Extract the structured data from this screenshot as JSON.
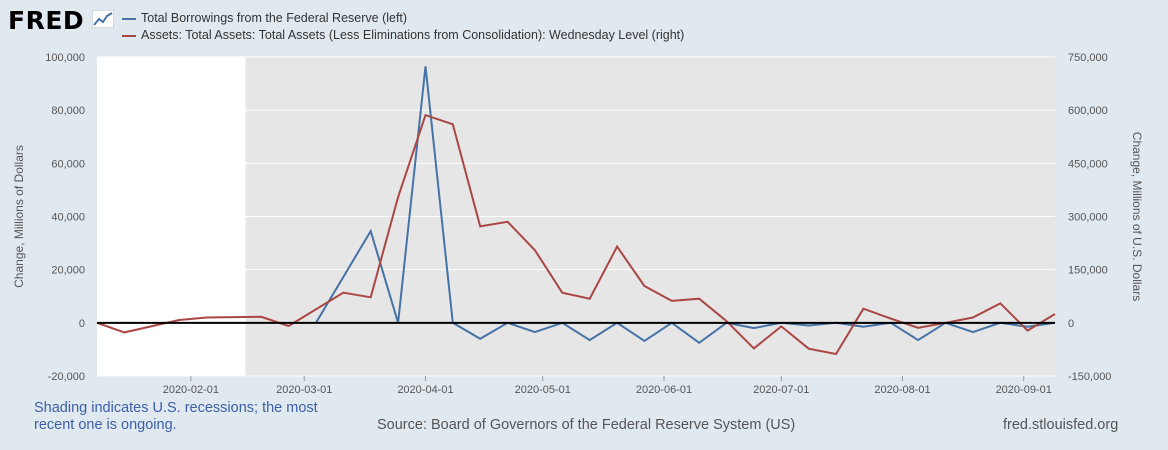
{
  "logo": {
    "text": "FRED",
    "icon": "fred-chart-icon"
  },
  "colors": {
    "background": "#e1e9f0",
    "plot_bg": "#e6e6e6",
    "unshaded": "#ffffff",
    "series_blue": "#4572a7",
    "series_red": "#aa4643",
    "zero_line": "#000000",
    "text": "#555555",
    "note": "#3b5fa6"
  },
  "legend": [
    {
      "label": "Total Borrowings from the Federal Reserve (left)",
      "color": "#4572a7"
    },
    {
      "label": "Assets: Total Assets: Total Assets (Less Eliminations from Consolidation): Wednesday Level (right)",
      "color": "#aa4643"
    }
  ],
  "footer": {
    "note": "Shading indicates U.S. recessions; the most recent one is ongoing.",
    "source": "Source: Board of Governors of the Federal Reserve System (US)",
    "url": "fred.stlouisfed.org"
  },
  "chart_data": {
    "type": "line",
    "title": "",
    "xlabel": "",
    "ylabel": "Change, Millions of Dollars",
    "ylabel_right": "Change, Millions of U.S. Dollars",
    "x": [
      "2020-01-08",
      "2020-01-15",
      "2020-01-29",
      "2020-02-12",
      "2020-02-26",
      "2020-03-11",
      "2020-03-18",
      "2020-03-25",
      "2020-04-01",
      "2020-04-08",
      "2020-04-15",
      "2020-04-22",
      "2020-04-29",
      "2020-05-06",
      "2020-05-13",
      "2020-05-20",
      "2020-05-27",
      "2020-06-03",
      "2020-06-10",
      "2020-06-17",
      "2020-06-24",
      "2020-07-01",
      "2020-07-08",
      "2020-07-15",
      "2020-07-22",
      "2020-07-29",
      "2020-08-05",
      "2020-08-12",
      "2020-08-19",
      "2020-08-26",
      "2020-09-02",
      "2020-09-09"
    ],
    "ylim_left": [
      -20000,
      100000
    ],
    "yticks_left": [
      "100,000",
      "80,000",
      "60,000",
      "40,000",
      "20,000",
      "0",
      "-20,000"
    ],
    "ylim_right": [
      -150000,
      750000
    ],
    "yticks_right": [
      "750,000",
      "600,000",
      "450,000",
      "300,000",
      "150,000",
      "0",
      "-150,000"
    ],
    "xticks": [
      "2020-02-01",
      "2020-03-01",
      "2020-04-01",
      "2020-05-01",
      "2020-06-01",
      "2020-07-01",
      "2020-08-01",
      "2020-09-01"
    ],
    "shading": {
      "start": "2020-02-15",
      "end": "2020-09-09",
      "label": "recession"
    },
    "series": [
      {
        "name": "Total Borrowings from the Federal Reserve (left)",
        "axis": "left",
        "x": [
          "2020-03-04",
          "2020-03-18",
          "2020-03-25",
          "2020-04-01",
          "2020-04-08",
          "2020-04-15",
          "2020-04-22",
          "2020-04-29",
          "2020-05-06",
          "2020-05-13",
          "2020-05-20",
          "2020-05-27",
          "2020-06-03",
          "2020-06-10",
          "2020-06-17",
          "2020-06-24",
          "2020-07-01",
          "2020-07-08",
          "2020-07-15",
          "2020-07-22",
          "2020-07-29",
          "2020-08-05",
          "2020-08-12",
          "2020-08-19",
          "2020-08-26",
          "2020-09-02",
          "2020-09-09"
        ],
        "values": [
          0,
          34500,
          0,
          96500,
          0,
          -6000,
          0,
          -3500,
          0,
          -6500,
          0,
          -6800,
          0,
          -7500,
          0,
          -2000,
          0,
          -1000,
          0,
          -1500,
          0,
          -6500,
          0,
          -3500,
          0,
          -1500,
          0
        ]
      },
      {
        "name": "Assets: Total Assets: Total Assets (Less Eliminations from Consolidation): Wednesday Level (right)",
        "axis": "right",
        "x": [
          "2020-01-08",
          "2020-01-15",
          "2020-01-29",
          "2020-02-05",
          "2020-02-19",
          "2020-02-26",
          "2020-03-11",
          "2020-03-18",
          "2020-03-25",
          "2020-04-01",
          "2020-04-08",
          "2020-04-15",
          "2020-04-22",
          "2020-04-29",
          "2020-05-06",
          "2020-05-13",
          "2020-05-20",
          "2020-05-27",
          "2020-06-03",
          "2020-06-10",
          "2020-06-17",
          "2020-06-24",
          "2020-07-01",
          "2020-07-08",
          "2020-07-15",
          "2020-07-22",
          "2020-07-29",
          "2020-08-05",
          "2020-08-12",
          "2020-08-19",
          "2020-08-26",
          "2020-09-02",
          "2020-09-09"
        ],
        "values": [
          0,
          -27000,
          8000,
          15000,
          17000,
          -9000,
          85000,
          72000,
          355000,
          586000,
          560000,
          272000,
          285000,
          205000,
          85000,
          68000,
          215000,
          104000,
          62000,
          68000,
          5000,
          -72000,
          -10000,
          -73000,
          -88000,
          40000,
          12000,
          -14000,
          0,
          15000,
          55000,
          -22000,
          25000
        ]
      }
    ]
  }
}
